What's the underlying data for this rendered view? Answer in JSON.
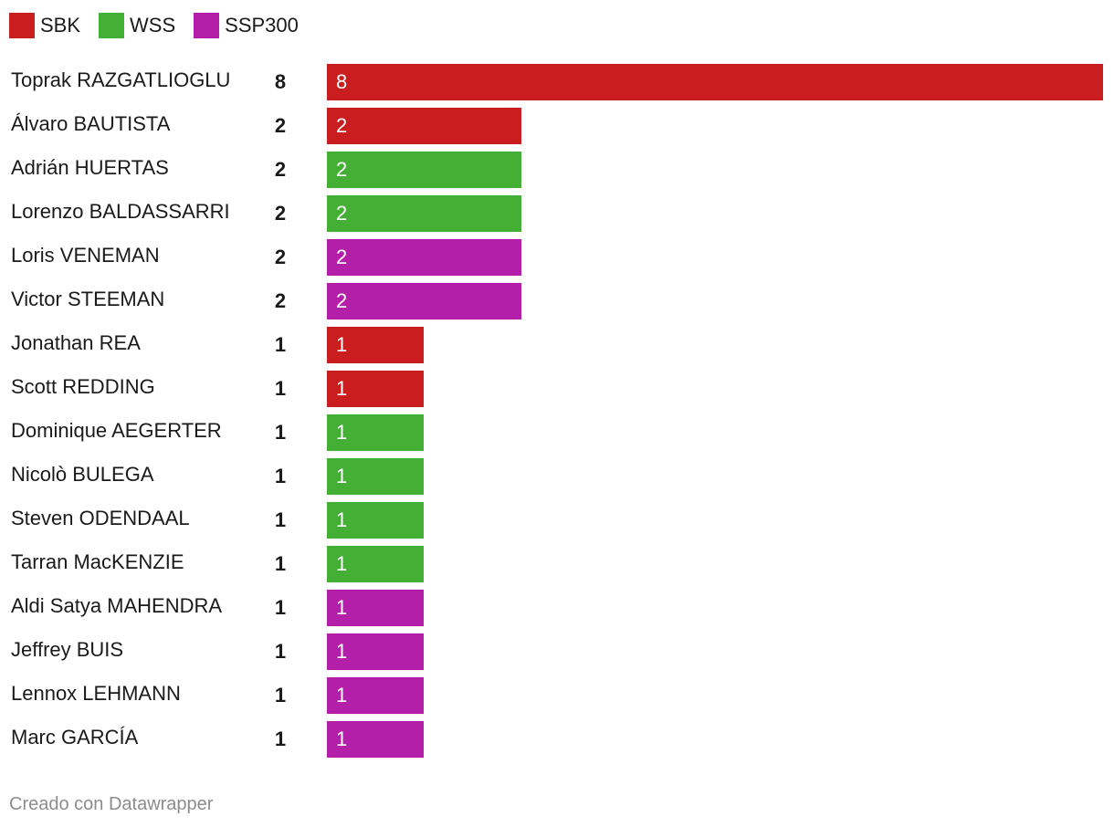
{
  "legend": [
    {
      "label": "SBK",
      "color": "#c91d1f"
    },
    {
      "label": "WSS",
      "color": "#43b035"
    },
    {
      "label": "SSP300",
      "color": "#b31fa9"
    }
  ],
  "chart_data": {
    "type": "bar",
    "orientation": "horizontal",
    "xlim": [
      0,
      8
    ],
    "categories": [
      "Toprak RAZGATLIOGLU",
      "Álvaro BAUTISTA",
      "Adrián HUERTAS",
      "Lorenzo BALDASSARRI",
      "Loris VENEMAN",
      "Victor STEEMAN",
      "Jonathan REA",
      "Scott REDDING",
      "Dominique AEGERTER",
      "Nicolò BULEGA",
      "Steven ODENDAAL",
      "Tarran MacKENZIE",
      "Aldi Satya MAHENDRA",
      "Jeffrey BUIS",
      "Lennox LEHMANN",
      "Marc GARCÍA"
    ],
    "values": [
      8,
      2,
      2,
      2,
      2,
      2,
      1,
      1,
      1,
      1,
      1,
      1,
      1,
      1,
      1,
      1
    ],
    "series_by_row": [
      "SBK",
      "SBK",
      "WSS",
      "WSS",
      "SSP300",
      "SSP300",
      "SBK",
      "SBK",
      "WSS",
      "WSS",
      "WSS",
      "WSS",
      "SSP300",
      "SSP300",
      "SSP300",
      "SSP300"
    ],
    "legend_position": "top-left",
    "grid": false
  },
  "footer": {
    "credit": "Creado con Datawrapper"
  }
}
